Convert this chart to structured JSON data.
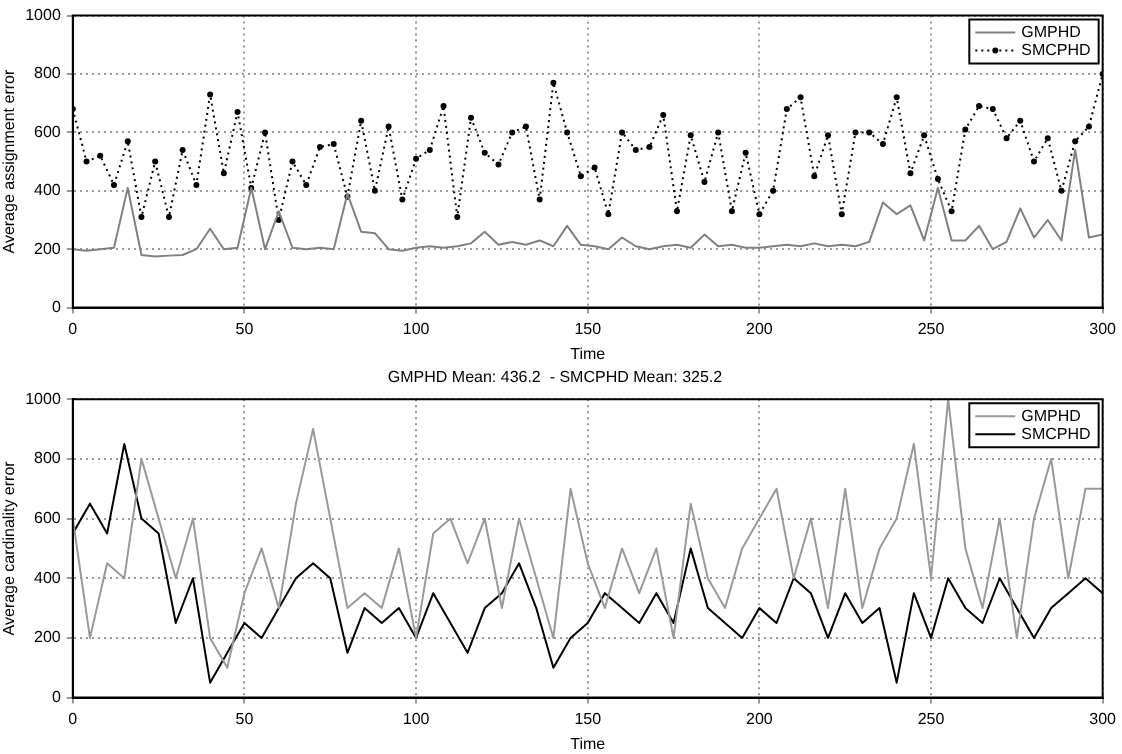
{
  "chart_data": [
    {
      "type": "line",
      "xlabel": "Time",
      "ylabel": "Average assignment error",
      "x": [
        0,
        4,
        8,
        12,
        16,
        20,
        24,
        28,
        32,
        36,
        40,
        44,
        48,
        52,
        56,
        60,
        64,
        68,
        72,
        76,
        80,
        84,
        88,
        92,
        96,
        100,
        104,
        108,
        112,
        116,
        120,
        124,
        128,
        132,
        136,
        140,
        144,
        148,
        152,
        156,
        160,
        164,
        168,
        172,
        176,
        180,
        184,
        188,
        192,
        196,
        200,
        204,
        208,
        212,
        216,
        220,
        224,
        228,
        232,
        236,
        240,
        244,
        248,
        252,
        256,
        260,
        264,
        268,
        272,
        276,
        280,
        284,
        288,
        292,
        296,
        300
      ],
      "series": [
        {
          "name": "GMPHD",
          "color": "#808080",
          "line_style": "solid",
          "marker": "none",
          "values": [
            200,
            195,
            200,
            205,
            410,
            180,
            175,
            178,
            180,
            200,
            270,
            200,
            205,
            410,
            200,
            330,
            205,
            200,
            205,
            200,
            390,
            260,
            255,
            200,
            195,
            205,
            210,
            205,
            210,
            220,
            260,
            215,
            225,
            215,
            230,
            210,
            280,
            215,
            210,
            200,
            240,
            210,
            200,
            210,
            215,
            205,
            250,
            210,
            215,
            205,
            205,
            210,
            215,
            210,
            220,
            210,
            215,
            210,
            225,
            360,
            320,
            350,
            230,
            410,
            230,
            230,
            280,
            200,
            225,
            340,
            240,
            300,
            230,
            540,
            240,
            250
          ]
        },
        {
          "name": "SMCPHD",
          "color": "#000000",
          "line_style": "dotted",
          "marker": "circle",
          "values": [
            680,
            500,
            520,
            420,
            570,
            310,
            500,
            310,
            540,
            420,
            730,
            460,
            670,
            410,
            600,
            300,
            500,
            420,
            550,
            560,
            380,
            640,
            400,
            620,
            370,
            510,
            540,
            690,
            310,
            650,
            530,
            490,
            600,
            620,
            370,
            770,
            600,
            450,
            480,
            320,
            600,
            540,
            550,
            660,
            330,
            590,
            430,
            600,
            330,
            530,
            320,
            400,
            680,
            720,
            450,
            590,
            320,
            600,
            600,
            560,
            720,
            460,
            590,
            440,
            330,
            610,
            690,
            680,
            580,
            640,
            500,
            580,
            400,
            570,
            620,
            800
          ]
        }
      ],
      "xlim": [
        0,
        300
      ],
      "xticks": [
        0,
        50,
        100,
        150,
        200,
        250,
        300
      ],
      "ylim": [
        0,
        1000
      ],
      "yticks": [
        0,
        200,
        400,
        600,
        800,
        1000
      ],
      "grid": true,
      "legend": "top right"
    },
    {
      "type": "line",
      "title": "GMPHD Mean: 436.2  - SMCPHD Mean: 325.2",
      "xlabel": "Time",
      "ylabel": "Average cardinality error",
      "x": [
        0,
        5,
        10,
        15,
        20,
        25,
        30,
        35,
        40,
        45,
        50,
        55,
        60,
        65,
        70,
        75,
        80,
        85,
        90,
        95,
        100,
        105,
        110,
        115,
        120,
        125,
        130,
        135,
        140,
        145,
        150,
        155,
        160,
        165,
        170,
        175,
        180,
        185,
        190,
        195,
        200,
        205,
        210,
        215,
        220,
        225,
        230,
        235,
        240,
        245,
        250,
        255,
        260,
        265,
        270,
        275,
        280,
        285,
        290,
        295,
        300
      ],
      "series": [
        {
          "name": "GMPHD",
          "color": "#999999",
          "line_style": "solid",
          "marker": "none",
          "values": [
            600,
            200,
            450,
            400,
            800,
            600,
            400,
            600,
            200,
            100,
            350,
            500,
            300,
            650,
            900,
            600,
            300,
            350,
            300,
            500,
            200,
            550,
            600,
            450,
            600,
            300,
            600,
            400,
            200,
            700,
            450,
            300,
            500,
            350,
            500,
            200,
            650,
            400,
            300,
            500,
            600,
            700,
            400,
            600,
            300,
            700,
            300,
            500,
            600,
            850,
            400,
            1000,
            500,
            300,
            600,
            200,
            600,
            800,
            400,
            700,
            700
          ]
        },
        {
          "name": "SMCPHD",
          "color": "#000000",
          "line_style": "solid",
          "marker": "none",
          "values": [
            550,
            650,
            550,
            850,
            600,
            550,
            250,
            400,
            50,
            150,
            250,
            200,
            300,
            400,
            450,
            400,
            150,
            300,
            250,
            300,
            200,
            350,
            250,
            150,
            300,
            350,
            450,
            300,
            100,
            200,
            250,
            350,
            300,
            250,
            350,
            250,
            500,
            300,
            250,
            200,
            300,
            250,
            400,
            350,
            200,
            350,
            250,
            300,
            50,
            350,
            200,
            400,
            300,
            250,
            400,
            300,
            200,
            300,
            350,
            400,
            350
          ]
        }
      ],
      "xlim": [
        0,
        300
      ],
      "xticks": [
        0,
        50,
        100,
        150,
        200,
        250,
        300
      ],
      "ylim": [
        0,
        1000
      ],
      "yticks": [
        0,
        200,
        400,
        600,
        800,
        1000
      ],
      "grid": true,
      "legend": "top right"
    }
  ]
}
